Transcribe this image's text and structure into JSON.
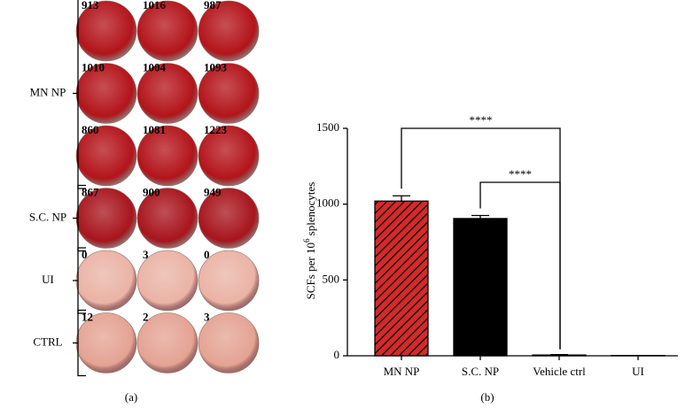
{
  "panel_a": {
    "label": "(a)",
    "groups": [
      {
        "name": "MN NP",
        "color": "#b3141a",
        "rows": [
          [
            913,
            1016,
            987
          ],
          [
            1010,
            1004,
            1093
          ],
          [
            860,
            1081,
            1223
          ]
        ]
      },
      {
        "name": "S.C. NP",
        "color": "#a8141c",
        "rows": [
          [
            867,
            900,
            949
          ]
        ]
      },
      {
        "name": "UI",
        "color": "#eab3a5",
        "rows": [
          [
            0,
            3,
            0
          ]
        ]
      },
      {
        "name": "CTRL",
        "color": "#e4a393",
        "rows": [
          [
            12,
            2,
            3
          ]
        ]
      }
    ]
  },
  "chart_data": {
    "type": "bar",
    "label": "(b)",
    "y_label": {
      "text": "SCFs per 10",
      "sup": "6",
      "rest": " splenocytes"
    },
    "categories": [
      "MN NP",
      "S.C. NP",
      "Vehicle ctrl",
      "UI"
    ],
    "values": [
      1020,
      905,
      5,
      2
    ],
    "errors": [
      35,
      20,
      3,
      0
    ],
    "colors": [
      "#d42a2a",
      "#000000",
      "#000000",
      "#000000"
    ],
    "hatch": [
      true,
      false,
      false,
      false
    ],
    "ylim": [
      0,
      1500
    ],
    "yticks": [
      0,
      500,
      1000,
      1500
    ],
    "annotations": [
      {
        "text": "****",
        "from": 0,
        "to": 2
      },
      {
        "text": "****",
        "from": 1,
        "to": 2
      }
    ]
  }
}
